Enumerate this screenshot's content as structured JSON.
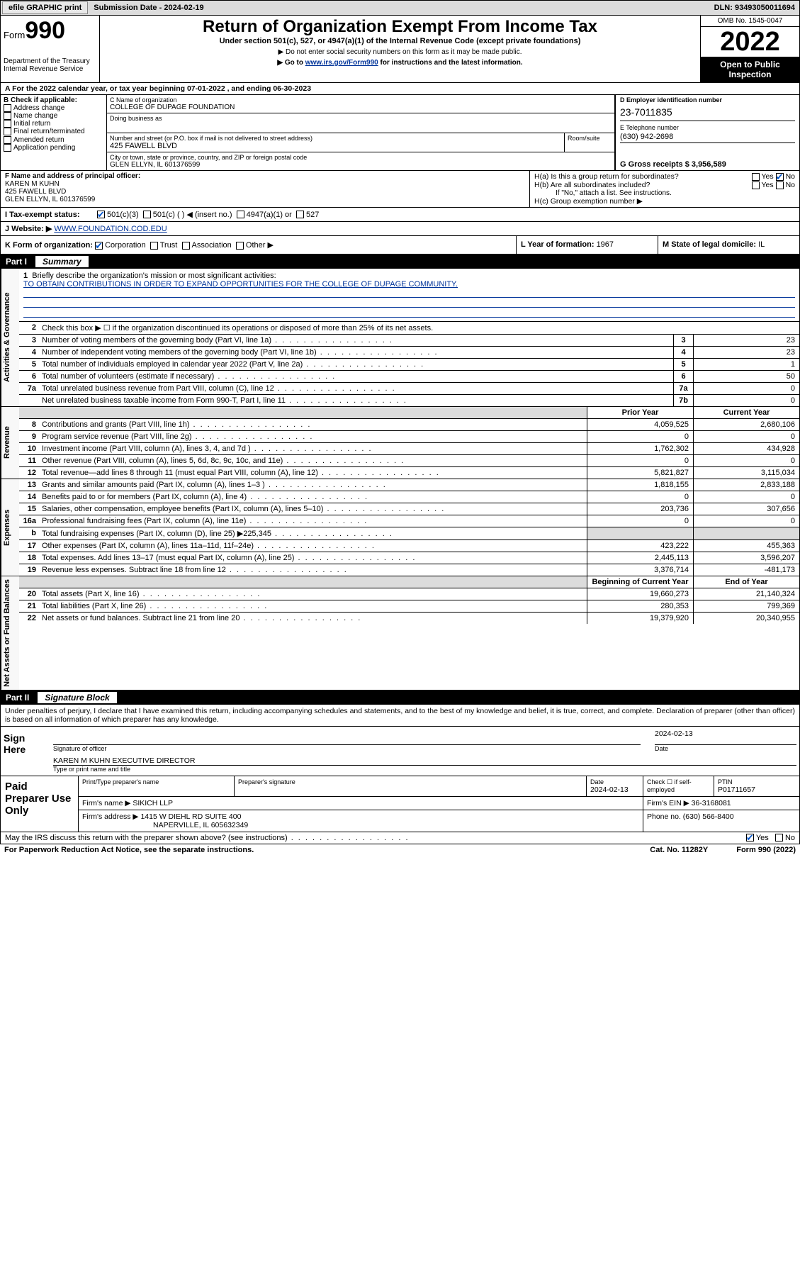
{
  "topbar": {
    "efile": "efile GRAPHIC print",
    "subdate_label": "Submission Date - ",
    "subdate": "2024-02-19",
    "dln_label": "DLN: ",
    "dln": "93493050011694"
  },
  "header": {
    "form_word": "Form",
    "form_num": "990",
    "dept": "Department of the Treasury",
    "irs": "Internal Revenue Service",
    "title": "Return of Organization Exempt From Income Tax",
    "sub1": "Under section 501(c), 527, or 4947(a)(1) of the Internal Revenue Code (except private foundations)",
    "sub2": "▶ Do not enter social security numbers on this form as it may be made public.",
    "sub3_pre": "▶ Go to ",
    "sub3_link": "www.irs.gov/Form990",
    "sub3_post": " for instructions and the latest information.",
    "omb": "OMB No. 1545-0047",
    "year": "2022",
    "open": "Open to Public Inspection"
  },
  "rowA": "A For the 2022 calendar year, or tax year beginning 07-01-2022    , and ending 06-30-2023",
  "colB": {
    "label": "B Check if applicable:",
    "items": [
      "Address change",
      "Name change",
      "Initial return",
      "Final return/terminated",
      "Amended return",
      "Application pending"
    ]
  },
  "colC": {
    "name_label": "C Name of organization",
    "name": "COLLEGE OF DUPAGE FOUNDATION",
    "dba_label": "Doing business as",
    "street_label": "Number and street (or P.O. box if mail is not delivered to street address)",
    "street": "425 FAWELL BLVD",
    "room_label": "Room/suite",
    "city_label": "City or town, state or province, country, and ZIP or foreign postal code",
    "city": "GLEN ELLYN, IL  601376599"
  },
  "colD": {
    "ein_label": "D Employer identification number",
    "ein": "23-7011835",
    "tel_label": "E Telephone number",
    "tel": "(630) 942-2698",
    "gross_label": "G Gross receipts $ ",
    "gross": "3,956,589"
  },
  "rowF": {
    "label": "F Name and address of principal officer:",
    "name": "KAREN M KUHN",
    "addr1": "425 FAWELL BLVD",
    "addr2": "GLEN ELLYN, IL  601376599"
  },
  "rowH": {
    "ha": "H(a)  Is this a group return for subordinates?",
    "hb": "H(b)  Are all subordinates included?",
    "hb_note": "If \"No,\" attach a list. See instructions.",
    "hc": "H(c)  Group exemption number ▶",
    "yes": "Yes",
    "no": "No"
  },
  "rowI": {
    "label": "I   Tax-exempt status:",
    "o1": "501(c)(3)",
    "o2": "501(c) (  ) ◀ (insert no.)",
    "o3": "4947(a)(1) or",
    "o4": "527"
  },
  "rowJ": {
    "label": "J   Website: ▶",
    "val": "WWW.FOUNDATION.COD.EDU"
  },
  "rowK": {
    "label": "K Form of organization:",
    "o1": "Corporation",
    "o2": "Trust",
    "o3": "Association",
    "o4": "Other ▶",
    "l_label": "L Year of formation: ",
    "l_val": "1967",
    "m_label": "M State of legal domicile: ",
    "m_val": "IL"
  },
  "part1": {
    "hdr_num": "Part I",
    "hdr_title": "Summary",
    "line1_label": "Briefly describe the organization's mission or most significant activities:",
    "line1_text": "TO OBTAIN CONTRIBUTIONS IN ORDER TO EXPAND OPPORTUNITIES FOR THE COLLEGE OF DUPAGE COMMUNITY.",
    "line2": "Check this box ▶ ☐  if the organization discontinued its operations or disposed of more than 25% of its net assets.",
    "prior_hdr": "Prior Year",
    "curr_hdr": "Current Year",
    "beg_hdr": "Beginning of Current Year",
    "end_hdr": "End of Year",
    "rows_gov": [
      {
        "n": "3",
        "d": "Number of voting members of the governing body (Part VI, line 1a)",
        "box": "3",
        "v": "23"
      },
      {
        "n": "4",
        "d": "Number of independent voting members of the governing body (Part VI, line 1b)",
        "box": "4",
        "v": "23"
      },
      {
        "n": "5",
        "d": "Total number of individuals employed in calendar year 2022 (Part V, line 2a)",
        "box": "5",
        "v": "1"
      },
      {
        "n": "6",
        "d": "Total number of volunteers (estimate if necessary)",
        "box": "6",
        "v": "50"
      },
      {
        "n": "7a",
        "d": "Total unrelated business revenue from Part VIII, column (C), line 12",
        "box": "7a",
        "v": "0"
      },
      {
        "n": "",
        "d": "Net unrelated business taxable income from Form 990-T, Part I, line 11",
        "box": "7b",
        "v": "0"
      }
    ],
    "rows_rev": [
      {
        "n": "8",
        "d": "Contributions and grants (Part VIII, line 1h)",
        "p": "4,059,525",
        "c": "2,680,106"
      },
      {
        "n": "9",
        "d": "Program service revenue (Part VIII, line 2g)",
        "p": "0",
        "c": "0"
      },
      {
        "n": "10",
        "d": "Investment income (Part VIII, column (A), lines 3, 4, and 7d )",
        "p": "1,762,302",
        "c": "434,928"
      },
      {
        "n": "11",
        "d": "Other revenue (Part VIII, column (A), lines 5, 6d, 8c, 9c, 10c, and 11e)",
        "p": "0",
        "c": "0"
      },
      {
        "n": "12",
        "d": "Total revenue—add lines 8 through 11 (must equal Part VIII, column (A), line 12)",
        "p": "5,821,827",
        "c": "3,115,034"
      }
    ],
    "rows_exp": [
      {
        "n": "13",
        "d": "Grants and similar amounts paid (Part IX, column (A), lines 1–3 )",
        "p": "1,818,155",
        "c": "2,833,188"
      },
      {
        "n": "14",
        "d": "Benefits paid to or for members (Part IX, column (A), line 4)",
        "p": "0",
        "c": "0"
      },
      {
        "n": "15",
        "d": "Salaries, other compensation, employee benefits (Part IX, column (A), lines 5–10)",
        "p": "203,736",
        "c": "307,656"
      },
      {
        "n": "16a",
        "d": "Professional fundraising fees (Part IX, column (A), line 11e)",
        "p": "0",
        "c": "0"
      },
      {
        "n": "b",
        "d": "Total fundraising expenses (Part IX, column (D), line 25) ▶225,345",
        "p": "",
        "c": "",
        "shade": true
      },
      {
        "n": "17",
        "d": "Other expenses (Part IX, column (A), lines 11a–11d, 11f–24e)",
        "p": "423,222",
        "c": "455,363"
      },
      {
        "n": "18",
        "d": "Total expenses. Add lines 13–17 (must equal Part IX, column (A), line 25)",
        "p": "2,445,113",
        "c": "3,596,207"
      },
      {
        "n": "19",
        "d": "Revenue less expenses. Subtract line 18 from line 12",
        "p": "3,376,714",
        "c": "-481,173"
      }
    ],
    "rows_net": [
      {
        "n": "20",
        "d": "Total assets (Part X, line 16)",
        "p": "19,660,273",
        "c": "21,140,324"
      },
      {
        "n": "21",
        "d": "Total liabilities (Part X, line 26)",
        "p": "280,353",
        "c": "799,369"
      },
      {
        "n": "22",
        "d": "Net assets or fund balances. Subtract line 21 from line 20",
        "p": "19,379,920",
        "c": "20,340,955"
      }
    ],
    "vtabs": {
      "gov": "Activities & Governance",
      "rev": "Revenue",
      "exp": "Expenses",
      "net": "Net Assets or Fund Balances"
    }
  },
  "part2": {
    "hdr_num": "Part II",
    "hdr_title": "Signature Block",
    "decl": "Under penalties of perjury, I declare that I have examined this return, including accompanying schedules and statements, and to the best of my knowledge and belief, it is true, correct, and complete. Declaration of preparer (other than officer) is based on all information of which preparer has any knowledge.",
    "sign_here": "Sign Here",
    "sig_officer": "Signature of officer",
    "sig_date": "Date",
    "sig_date_val": "2024-02-13",
    "name_title": "KAREN M KUHN  EXECUTIVE DIRECTOR",
    "name_label": "Type or print name and title",
    "paid": "Paid Preparer Use Only",
    "pt_name": "Print/Type preparer's name",
    "pt_sig": "Preparer's signature",
    "pt_date": "Date",
    "pt_date_val": "2024-02-13",
    "pt_check": "Check ☐ if self-employed",
    "ptin_label": "PTIN",
    "ptin": "P01711657",
    "firm_name_label": "Firm's name      ▶",
    "firm_name": "SIKICH LLP",
    "firm_ein_label": "Firm's EIN ▶",
    "firm_ein": "36-3168081",
    "firm_addr_label": "Firm's address ▶",
    "firm_addr1": "1415 W DIEHL RD SUITE 400",
    "firm_addr2": "NAPERVILLE, IL  605632349",
    "phone_label": "Phone no. ",
    "phone": "(630) 566-8400",
    "may_irs": "May the IRS discuss this return with the preparer shown above? (see instructions)",
    "yes": "Yes",
    "no": "No"
  },
  "footer": {
    "pra": "For Paperwork Reduction Act Notice, see the separate instructions.",
    "cat": "Cat. No. 11282Y",
    "form": "Form 990 (2022)"
  }
}
